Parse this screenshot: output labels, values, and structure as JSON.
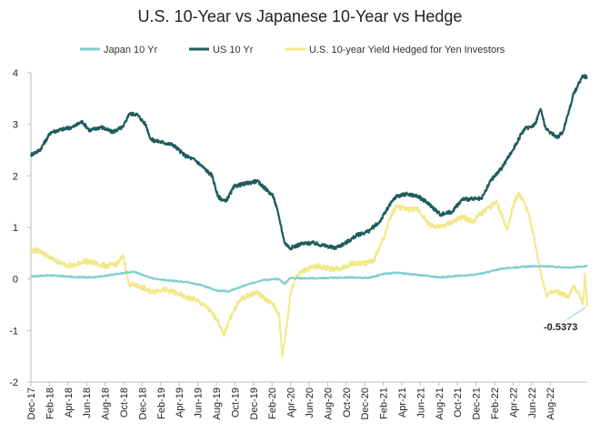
{
  "chart_data": {
    "type": "line",
    "title": "U.S. 10-Year vs Japanese 10-Year vs Hedge",
    "xlabel": "",
    "ylabel": "",
    "ylim": [
      -2,
      4
    ],
    "yticks": [
      "-2",
      "-1",
      "0",
      "1",
      "2",
      "3",
      "4"
    ],
    "x_range": [
      2017.92,
      2022.92
    ],
    "xticks": [
      "Dec-17",
      "Feb-18",
      "Apr-18",
      "Jun-18",
      "Aug-18",
      "Oct-18",
      "Dec-18",
      "Feb-19",
      "Apr-19",
      "Jun-19",
      "Aug-19",
      "Oct-19",
      "Dec-19",
      "Feb-20",
      "Apr-20",
      "Jun-20",
      "Aug-20",
      "Oct-20",
      "Dec-20",
      "Feb-21",
      "Apr-21",
      "Jun-21",
      "Aug-21",
      "Oct-21",
      "Dec-21",
      "Feb-22",
      "Apr-22",
      "Jun-22",
      "Aug-22"
    ],
    "series": [
      {
        "name": "Japan 10 Yr",
        "color": "#7fcfcf",
        "points": [
          [
            2017.92,
            0.05
          ],
          [
            2018.1,
            0.07
          ],
          [
            2018.3,
            0.04
          ],
          [
            2018.5,
            0.03
          ],
          [
            2018.7,
            0.1
          ],
          [
            2018.85,
            0.14
          ],
          [
            2019.0,
            0.02
          ],
          [
            2019.15,
            -0.03
          ],
          [
            2019.3,
            -0.05
          ],
          [
            2019.45,
            -0.12
          ],
          [
            2019.6,
            -0.23
          ],
          [
            2019.7,
            -0.24
          ],
          [
            2019.85,
            -0.12
          ],
          [
            2020.0,
            -0.02
          ],
          [
            2020.15,
            0.0
          ],
          [
            2020.2,
            -0.1
          ],
          [
            2020.25,
            0.02
          ],
          [
            2020.4,
            0.01
          ],
          [
            2020.6,
            0.02
          ],
          [
            2020.8,
            0.03
          ],
          [
            2020.95,
            0.02
          ],
          [
            2021.1,
            0.1
          ],
          [
            2021.2,
            0.12
          ],
          [
            2021.4,
            0.08
          ],
          [
            2021.6,
            0.03
          ],
          [
            2021.75,
            0.06
          ],
          [
            2021.9,
            0.08
          ],
          [
            2022.0,
            0.12
          ],
          [
            2022.15,
            0.2
          ],
          [
            2022.3,
            0.23
          ],
          [
            2022.45,
            0.25
          ],
          [
            2022.6,
            0.24
          ],
          [
            2022.75,
            0.22
          ],
          [
            2022.92,
            0.25
          ]
        ]
      },
      {
        "name": "US 10 Yr",
        "color": "#1e5c5c",
        "points": [
          [
            2017.92,
            2.41
          ],
          [
            2018.0,
            2.5
          ],
          [
            2018.1,
            2.85
          ],
          [
            2018.2,
            2.9
          ],
          [
            2018.3,
            2.95
          ],
          [
            2018.38,
            3.05
          ],
          [
            2018.45,
            2.88
          ],
          [
            2018.55,
            2.95
          ],
          [
            2018.65,
            2.85
          ],
          [
            2018.75,
            2.95
          ],
          [
            2018.8,
            3.2
          ],
          [
            2018.87,
            3.2
          ],
          [
            2018.95,
            3.0
          ],
          [
            2019.0,
            2.7
          ],
          [
            2019.1,
            2.65
          ],
          [
            2019.2,
            2.6
          ],
          [
            2019.3,
            2.4
          ],
          [
            2019.4,
            2.3
          ],
          [
            2019.5,
            2.1
          ],
          [
            2019.55,
            2.0
          ],
          [
            2019.6,
            1.6
          ],
          [
            2019.67,
            1.5
          ],
          [
            2019.75,
            1.8
          ],
          [
            2019.85,
            1.85
          ],
          [
            2019.95,
            1.9
          ],
          [
            2020.03,
            1.75
          ],
          [
            2020.1,
            1.6
          ],
          [
            2020.15,
            1.2
          ],
          [
            2020.2,
            0.7
          ],
          [
            2020.25,
            0.6
          ],
          [
            2020.35,
            0.68
          ],
          [
            2020.45,
            0.7
          ],
          [
            2020.55,
            0.65
          ],
          [
            2020.65,
            0.6
          ],
          [
            2020.75,
            0.7
          ],
          [
            2020.85,
            0.85
          ],
          [
            2020.95,
            0.92
          ],
          [
            2021.05,
            1.1
          ],
          [
            2021.15,
            1.45
          ],
          [
            2021.2,
            1.6
          ],
          [
            2021.3,
            1.65
          ],
          [
            2021.4,
            1.6
          ],
          [
            2021.5,
            1.45
          ],
          [
            2021.6,
            1.25
          ],
          [
            2021.7,
            1.3
          ],
          [
            2021.8,
            1.55
          ],
          [
            2021.9,
            1.55
          ],
          [
            2021.97,
            1.55
          ],
          [
            2022.05,
            1.9
          ],
          [
            2022.15,
            2.15
          ],
          [
            2022.25,
            2.5
          ],
          [
            2022.35,
            2.9
          ],
          [
            2022.45,
            3.0
          ],
          [
            2022.5,
            3.3
          ],
          [
            2022.55,
            2.9
          ],
          [
            2022.65,
            2.75
          ],
          [
            2022.7,
            2.85
          ],
          [
            2022.8,
            3.6
          ],
          [
            2022.88,
            3.95
          ],
          [
            2022.92,
            3.9
          ]
        ]
      },
      {
        "name": "U.S. 10-year Yield Hedged for Yen Investors",
        "color": "#f2e88a",
        "points": [
          [
            2017.92,
            0.55
          ],
          [
            2018.0,
            0.55
          ],
          [
            2018.1,
            0.4
          ],
          [
            2018.2,
            0.3
          ],
          [
            2018.3,
            0.25
          ],
          [
            2018.4,
            0.35
          ],
          [
            2018.5,
            0.3
          ],
          [
            2018.6,
            0.25
          ],
          [
            2018.7,
            0.3
          ],
          [
            2018.75,
            0.45
          ],
          [
            2018.8,
            -0.1
          ],
          [
            2018.9,
            -0.15
          ],
          [
            2019.0,
            -0.25
          ],
          [
            2019.1,
            -0.2
          ],
          [
            2019.2,
            -0.25
          ],
          [
            2019.3,
            -0.35
          ],
          [
            2019.4,
            -0.4
          ],
          [
            2019.5,
            -0.55
          ],
          [
            2019.6,
            -0.8
          ],
          [
            2019.65,
            -1.1
          ],
          [
            2019.7,
            -0.8
          ],
          [
            2019.8,
            -0.4
          ],
          [
            2019.9,
            -0.3
          ],
          [
            2019.95,
            -0.25
          ],
          [
            2020.0,
            -0.35
          ],
          [
            2020.1,
            -0.5
          ],
          [
            2020.15,
            -0.7
          ],
          [
            2020.18,
            -1.5
          ],
          [
            2020.22,
            -0.9
          ],
          [
            2020.25,
            -0.3
          ],
          [
            2020.3,
            0.05
          ],
          [
            2020.4,
            0.2
          ],
          [
            2020.5,
            0.25
          ],
          [
            2020.6,
            0.2
          ],
          [
            2020.7,
            0.2
          ],
          [
            2020.8,
            0.3
          ],
          [
            2020.9,
            0.3
          ],
          [
            2021.0,
            0.35
          ],
          [
            2021.05,
            0.6
          ],
          [
            2021.1,
            0.85
          ],
          [
            2021.15,
            1.2
          ],
          [
            2021.2,
            1.4
          ],
          [
            2021.3,
            1.35
          ],
          [
            2021.4,
            1.35
          ],
          [
            2021.5,
            1.05
          ],
          [
            2021.6,
            1.0
          ],
          [
            2021.7,
            1.1
          ],
          [
            2021.8,
            1.2
          ],
          [
            2021.9,
            1.1
          ],
          [
            2021.95,
            1.25
          ],
          [
            2022.05,
            1.4
          ],
          [
            2022.1,
            1.5
          ],
          [
            2022.15,
            1.25
          ],
          [
            2022.2,
            0.95
          ],
          [
            2022.25,
            1.4
          ],
          [
            2022.3,
            1.65
          ],
          [
            2022.35,
            1.5
          ],
          [
            2022.4,
            1.2
          ],
          [
            2022.45,
            0.7
          ],
          [
            2022.5,
            0.15
          ],
          [
            2022.55,
            -0.3
          ],
          [
            2022.65,
            -0.25
          ],
          [
            2022.75,
            -0.35
          ],
          [
            2022.8,
            -0.15
          ],
          [
            2022.85,
            -0.3
          ],
          [
            2022.88,
            -0.5
          ],
          [
            2022.9,
            0.1
          ],
          [
            2022.92,
            -0.5373
          ]
        ]
      }
    ],
    "annotation": {
      "label": "-0.5373",
      "x": 2022.92,
      "y": -0.5373
    },
    "legend_position": "top"
  }
}
